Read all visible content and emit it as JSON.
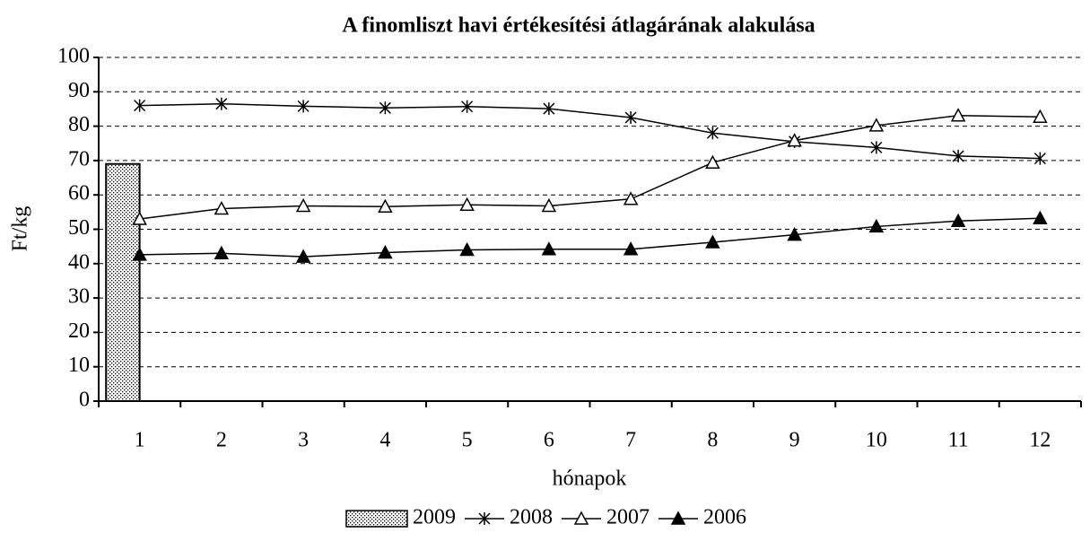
{
  "chart_data": {
    "type": "combo",
    "title": "A finomliszt havi értékesítési átlagárának alakulása",
    "x_label": "hónapok",
    "y_label": "Ft/kg",
    "categories": [
      "1",
      "2",
      "3",
      "4",
      "5",
      "6",
      "7",
      "8",
      "9",
      "10",
      "11",
      "12"
    ],
    "ylim": [
      0,
      100
    ],
    "yticks": [
      0,
      10,
      20,
      30,
      40,
      50,
      60,
      70,
      80,
      90,
      100
    ],
    "grid": true,
    "legend": "bottom",
    "series": [
      {
        "name": "2009",
        "type": "bar",
        "color": "#000000",
        "pattern": "dots",
        "values": [
          69,
          null,
          null,
          null,
          null,
          null,
          null,
          null,
          null,
          null,
          null,
          null
        ]
      },
      {
        "name": "2008",
        "type": "line",
        "color": "#000000",
        "marker": "asterisk",
        "values": [
          86,
          86.5,
          85.8,
          85.3,
          85.7,
          85.1,
          82.5,
          78,
          75.5,
          73.8,
          71.3,
          70.6
        ]
      },
      {
        "name": "2007",
        "type": "line",
        "color": "#000000",
        "marker": "triangle-open",
        "values": [
          53,
          56,
          56.8,
          56.6,
          57.1,
          56.8,
          58.8,
          69.4,
          75.8,
          80.2,
          83.1,
          82.7
        ]
      },
      {
        "name": "2006",
        "type": "line",
        "color": "#000000",
        "marker": "triangle",
        "values": [
          42.6,
          43,
          42,
          43.2,
          44,
          44.2,
          44.2,
          46.2,
          48.4,
          50.8,
          52.4,
          53.2
        ]
      }
    ]
  }
}
